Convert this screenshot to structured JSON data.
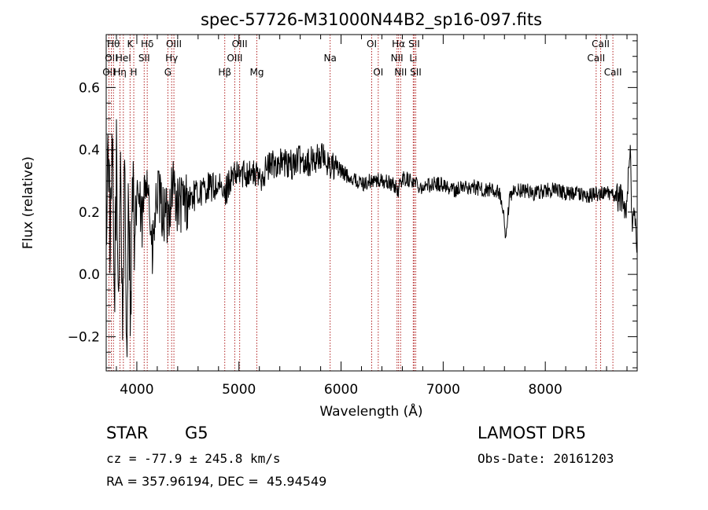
{
  "chart_data": {
    "type": "line",
    "title": "spec-57726-M31000N44B2_sp16-097.fits",
    "xlabel": "Wavelength (Å)",
    "ylabel": "Flux (relative)",
    "xlim": [
      3700,
      8900
    ],
    "ylim": [
      -0.31,
      0.77
    ],
    "x_ticks": [
      4000,
      5000,
      6000,
      7000,
      8000
    ],
    "x_tick_labels": [
      "4000",
      "5000",
      "6000",
      "7000",
      "8000"
    ],
    "x_minor_step": 200,
    "y_ticks": [
      -0.2,
      0.0,
      0.2,
      0.4,
      0.6
    ],
    "y_tick_labels": [
      "−0.2",
      "0.0",
      "0.2",
      "0.4",
      "0.6"
    ],
    "y_minor_step": 0.05,
    "grid": false,
    "line_color": "#000000",
    "marker_color": "#b22222",
    "series": [
      {
        "x": [
          3700,
          3720,
          3740,
          3760,
          3780,
          3800,
          3820,
          3840,
          3860,
          3880,
          3900,
          3920,
          3940,
          3960,
          3980,
          4000,
          4050,
          4100,
          4150,
          4200,
          4250,
          4300,
          4350,
          4400,
          4500,
          4600,
          4700,
          4800,
          4860,
          4900,
          5000,
          5100,
          5200,
          5300,
          5400,
          5500,
          5600,
          5700,
          5800,
          5900,
          6000,
          6100,
          6200,
          6300,
          6400,
          6500,
          6562,
          6600,
          6700,
          6800,
          6900,
          7000,
          7100,
          7200,
          7300,
          7400,
          7500,
          7550,
          7590,
          7610,
          7650,
          7700,
          7800,
          7900,
          8000,
          8100,
          8200,
          8300,
          8400,
          8500,
          8600,
          8700,
          8750,
          8800,
          8830,
          8850,
          8870,
          8890
        ],
        "y": [
          0.14,
          0.47,
          0.05,
          0.38,
          -0.1,
          0.35,
          -0.08,
          0.4,
          -0.18,
          0.3,
          -0.22,
          0.28,
          -0.12,
          0.33,
          -0.02,
          0.3,
          0.15,
          0.36,
          0.05,
          0.26,
          0.2,
          0.18,
          0.3,
          0.22,
          0.24,
          0.26,
          0.28,
          0.28,
          0.25,
          0.3,
          0.32,
          0.33,
          0.31,
          0.35,
          0.36,
          0.35,
          0.37,
          0.36,
          0.38,
          0.35,
          0.33,
          0.31,
          0.29,
          0.3,
          0.3,
          0.29,
          0.27,
          0.31,
          0.3,
          0.28,
          0.29,
          0.29,
          0.27,
          0.28,
          0.28,
          0.27,
          0.27,
          0.26,
          0.19,
          0.1,
          0.24,
          0.27,
          0.27,
          0.26,
          0.27,
          0.27,
          0.26,
          0.26,
          0.25,
          0.26,
          0.26,
          0.25,
          0.24,
          0.22,
          0.43,
          0.18,
          0.22,
          0.1
        ]
      }
    ],
    "line_markers": [
      {
        "x": 3727,
        "labels": [
          "OII"
        ],
        "row": 3
      },
      {
        "x": 3750,
        "labels": [
          "OII"
        ],
        "row": 2
      },
      {
        "x": 3771,
        "labels": [
          "Hθ"
        ],
        "row": 1
      },
      {
        "x": 3835,
        "labels": [
          "Hη"
        ],
        "row": 3
      },
      {
        "x": 3868,
        "labels": [
          "HeI"
        ],
        "row": 2
      },
      {
        "x": 3934,
        "labels": [
          "K"
        ],
        "row": 1
      },
      {
        "x": 3970,
        "labels": [
          "H"
        ],
        "row": 3
      },
      {
        "x": 4072,
        "labels": [
          "SII"
        ],
        "row": 2
      },
      {
        "x": 4102,
        "labels": [
          "Hδ"
        ],
        "row": 1
      },
      {
        "x": 4304,
        "labels": [
          "G"
        ],
        "row": 3
      },
      {
        "x": 4341,
        "labels": [
          "Hγ"
        ],
        "row": 2
      },
      {
        "x": 4363,
        "labels": [
          "OIII"
        ],
        "row": 1
      },
      {
        "x": 4861,
        "labels": [
          "Hβ"
        ],
        "row": 3
      },
      {
        "x": 4959,
        "labels": [
          "OIII"
        ],
        "row": 2
      },
      {
        "x": 5007,
        "labels": [
          "OIII"
        ],
        "row": 1
      },
      {
        "x": 5175,
        "labels": [
          "Mg"
        ],
        "row": 3
      },
      {
        "x": 5893,
        "labels": [
          "Na"
        ],
        "row": 2
      },
      {
        "x": 6300,
        "labels": [
          "OI"
        ],
        "row": 1
      },
      {
        "x": 6364,
        "labels": [
          "OI"
        ],
        "row": 3
      },
      {
        "x": 6548,
        "labels": [
          "NII"
        ],
        "row": 2
      },
      {
        "x": 6563,
        "labels": [
          "Hα"
        ],
        "row": 1
      },
      {
        "x": 6583,
        "labels": [
          "NII"
        ],
        "row": 3
      },
      {
        "x": 6707,
        "labels": [
          "Li"
        ],
        "row": 2
      },
      {
        "x": 6716,
        "labels": [
          "SII"
        ],
        "row": 1
      },
      {
        "x": 6731,
        "labels": [
          "SII"
        ],
        "row": 3
      },
      {
        "x": 8498,
        "labels": [
          "CaII"
        ],
        "row": 2
      },
      {
        "x": 8542,
        "labels": [
          "CaII"
        ],
        "row": 1
      },
      {
        "x": 8662,
        "labels": [
          "CaII"
        ],
        "row": 3
      }
    ]
  },
  "info": {
    "class_label": "STAR",
    "subclass_label": "G5",
    "survey_label": "LAMOST DR5",
    "cz_text": "cz = -77.9 ± 245.8 km/s",
    "obs_date_text": "Obs-Date: 20161203",
    "radec_text": "RA = 357.96194, DEC =  45.94549"
  }
}
